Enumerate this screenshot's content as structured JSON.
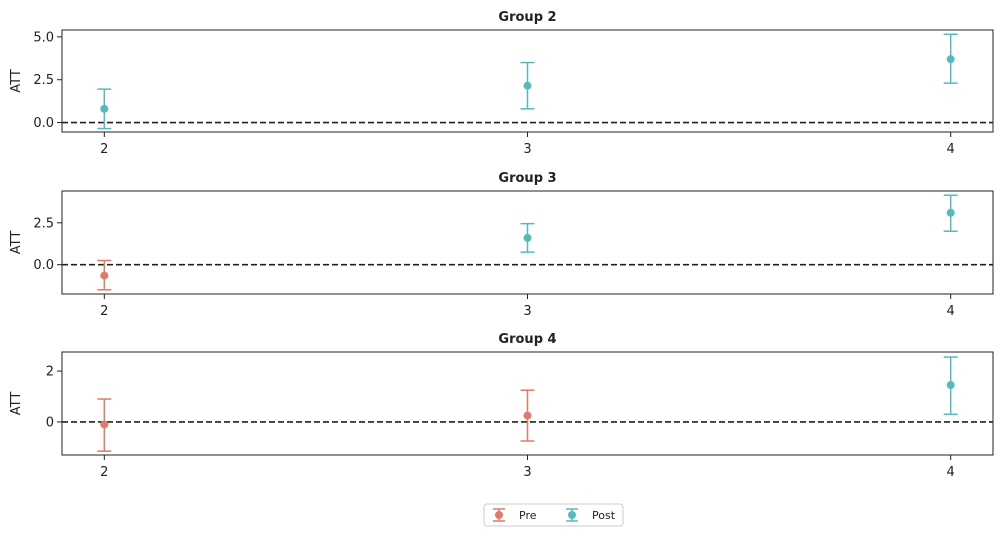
{
  "chart_data": {
    "type": "errorbar",
    "ylabel": "ATT",
    "legend": {
      "placement": "bottom-center",
      "entries": [
        {
          "name": "Pre",
          "color": "#e07a6a"
        },
        {
          "name": "Post",
          "color": "#57b9bf"
        }
      ]
    },
    "reference_line": {
      "y": 0,
      "style": "dashed",
      "color": "#222222"
    },
    "panels": [
      {
        "title": "Group 2",
        "x": [
          2,
          3,
          4
        ],
        "ylim": [
          -0.55,
          5.4
        ],
        "yticks": [
          0.0,
          2.5,
          5.0
        ],
        "ytick_labels": [
          "0.0",
          "2.5",
          "5.0"
        ],
        "points": [
          {
            "x": 2,
            "y": 0.8,
            "lo": -0.35,
            "hi": 1.95,
            "period": "Post"
          },
          {
            "x": 3,
            "y": 2.15,
            "lo": 0.8,
            "hi": 3.5,
            "period": "Post"
          },
          {
            "x": 4,
            "y": 3.7,
            "lo": 2.3,
            "hi": 5.15,
            "period": "Post"
          }
        ]
      },
      {
        "title": "Group 3",
        "x": [
          2,
          3,
          4
        ],
        "ylim": [
          -1.75,
          4.4
        ],
        "yticks": [
          0.0,
          2.5
        ],
        "ytick_labels": [
          "0.0",
          "2.5"
        ],
        "points": [
          {
            "x": 2,
            "y": -0.65,
            "lo": -1.5,
            "hi": 0.25,
            "period": "Pre"
          },
          {
            "x": 3,
            "y": 1.6,
            "lo": 0.75,
            "hi": 2.45,
            "period": "Post"
          },
          {
            "x": 4,
            "y": 3.1,
            "lo": 2.0,
            "hi": 4.15,
            "period": "Post"
          }
        ]
      },
      {
        "title": "Group 4",
        "x": [
          2,
          3,
          4
        ],
        "ylim": [
          -1.3,
          2.75
        ],
        "yticks": [
          0,
          2
        ],
        "ytick_labels": [
          "0",
          "2"
        ],
        "points": [
          {
            "x": 2,
            "y": -0.1,
            "lo": -1.15,
            "hi": 0.9,
            "period": "Pre"
          },
          {
            "x": 3,
            "y": 0.25,
            "lo": -0.75,
            "hi": 1.25,
            "period": "Pre"
          },
          {
            "x": 4,
            "y": 1.45,
            "lo": 0.3,
            "hi": 2.55,
            "period": "Post"
          }
        ]
      }
    ]
  }
}
